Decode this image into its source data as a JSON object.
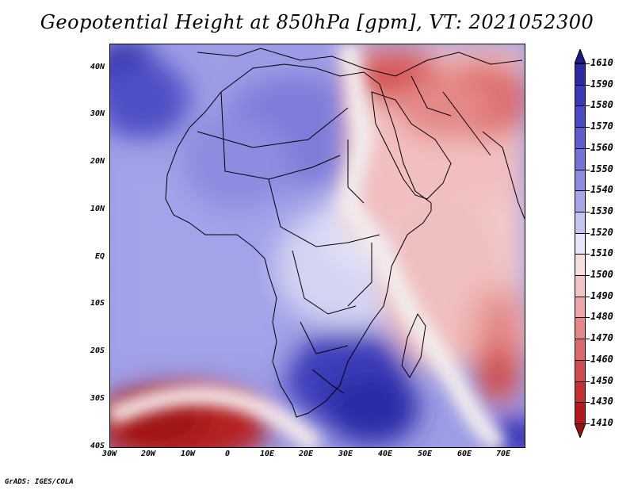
{
  "title": "Geopotential Height at 850hPa [gpm], VT: 2021052300",
  "footer": "GrADS: IGES/COLA",
  "map": {
    "region": "Africa and Arabian Peninsula",
    "lat_labels": [
      "40N",
      "30N",
      "20N",
      "10N",
      "EQ",
      "10S",
      "20S",
      "30S",
      "40S"
    ],
    "lon_labels": [
      "30W",
      "20W",
      "10W",
      "0",
      "10E",
      "20E",
      "30E",
      "40E",
      "50E",
      "60E",
      "70E"
    ]
  },
  "colorbar": {
    "levels": [
      "1610",
      "1590",
      "1580",
      "1570",
      "1560",
      "1550",
      "1540",
      "1530",
      "1520",
      "1510",
      "1500",
      "1490",
      "1480",
      "1470",
      "1460",
      "1450",
      "1430",
      "1410"
    ],
    "colors": [
      "#1f1a8a",
      "#2b2ba6",
      "#3a3ab8",
      "#4b4bc4",
      "#5e5ecf",
      "#7373d8",
      "#8c8cdf",
      "#a6a6e8",
      "#c4c4f0",
      "#e6e6f8",
      "#f6dede",
      "#f2c3c3",
      "#eca8a8",
      "#e48888",
      "#db6a6a",
      "#d04d4d",
      "#c23030",
      "#b01a1a",
      "#9a0f0f"
    ]
  }
}
